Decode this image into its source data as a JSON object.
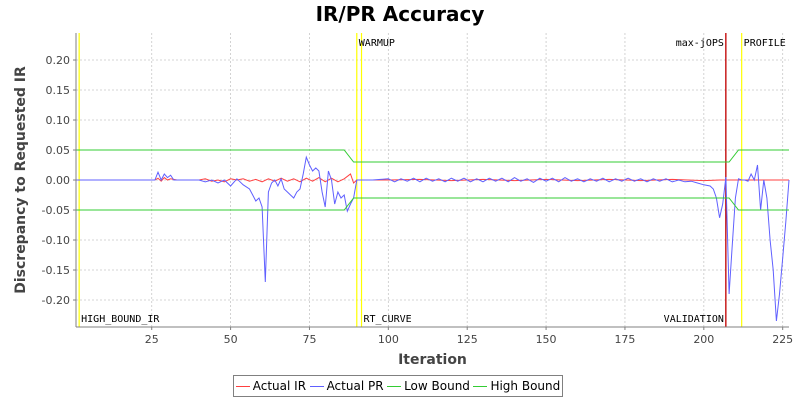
{
  "chart_data": {
    "type": "line",
    "title": "IR/PR Accuracy",
    "xlabel": "Iteration",
    "ylabel": "Discrepancy to Requested IR",
    "xlim": [
      1,
      227
    ],
    "ylim": [
      -0.245,
      0.245
    ],
    "xticks": [
      25,
      50,
      75,
      100,
      125,
      150,
      175,
      200,
      225
    ],
    "yticks": [
      -0.2,
      -0.15,
      -0.1,
      -0.05,
      0.0,
      0.05,
      0.1,
      0.15,
      0.2
    ],
    "ytick_labels": [
      "-0.20",
      "-0.15",
      "-0.10",
      "-0.05",
      "0.00",
      "0.05",
      "0.10",
      "0.15",
      "0.20"
    ],
    "grid": true,
    "legend_position": "bottom",
    "markers": [
      {
        "x": 2,
        "label": "HIGH_BOUND_IR",
        "color": "#ffff00",
        "label_pos": "bottom"
      },
      {
        "x": 90,
        "label": "WARMUP",
        "color": "#ffff00",
        "label_pos": "top"
      },
      {
        "x": 91.5,
        "label": "RT_CURVE",
        "color": "#ffff00",
        "label_pos": "bottom"
      },
      {
        "x": 207,
        "label": "max-jOPS",
        "color": "#c00000",
        "label_pos": "top",
        "label_side": "left"
      },
      {
        "x": 207,
        "label": "VALIDATION",
        "color": "#c00000",
        "label_pos": "bottom",
        "label_side": "left"
      },
      {
        "x": 212,
        "label": "PROFILE",
        "color": "#ffff00",
        "label_pos": "top"
      }
    ],
    "series": [
      {
        "name": "Actual IR",
        "color": "#ff4040",
        "points": [
          [
            1,
            0
          ],
          [
            26,
            0
          ],
          [
            27,
            0.003
          ],
          [
            28,
            -0.002
          ],
          [
            29,
            0.004
          ],
          [
            30,
            0
          ],
          [
            31,
            0.002
          ],
          [
            33,
            0
          ],
          [
            40,
            0
          ],
          [
            42,
            0.002
          ],
          [
            44,
            -0.002
          ],
          [
            46,
            0
          ],
          [
            48,
            -0.003
          ],
          [
            50,
            0.002
          ],
          [
            52,
            0
          ],
          [
            54,
            0.002
          ],
          [
            56,
            -0.002
          ],
          [
            58,
            0.001
          ],
          [
            60,
            -0.003
          ],
          [
            62,
            0.002
          ],
          [
            64,
            -0.002
          ],
          [
            66,
            0.003
          ],
          [
            68,
            -0.002
          ],
          [
            70,
            0.002
          ],
          [
            72,
            -0.003
          ],
          [
            74,
            0.003
          ],
          [
            76,
            -0.002
          ],
          [
            78,
            0.004
          ],
          [
            80,
            -0.003
          ],
          [
            82,
            0.003
          ],
          [
            84,
            -0.003
          ],
          [
            86,
            0.002
          ],
          [
            88,
            0.01
          ],
          [
            89,
            -0.005
          ],
          [
            90,
            0
          ],
          [
            100,
            0
          ],
          [
            110,
            0.001
          ],
          [
            120,
            -0.001
          ],
          [
            130,
            0.001
          ],
          [
            140,
            -0.001
          ],
          [
            150,
            0.001
          ],
          [
            160,
            -0.001
          ],
          [
            170,
            0.001
          ],
          [
            180,
            -0.001
          ],
          [
            190,
            0.001
          ],
          [
            200,
            -0.001
          ],
          [
            205,
            0
          ],
          [
            210,
            0
          ],
          [
            227,
            0
          ]
        ]
      },
      {
        "name": "Actual PR",
        "color": "#6060ff",
        "points": [
          [
            1,
            0
          ],
          [
            26,
            0
          ],
          [
            27,
            0.013
          ],
          [
            28,
            0
          ],
          [
            29,
            0.01
          ],
          [
            30,
            0.004
          ],
          [
            31,
            0.008
          ],
          [
            32,
            0
          ],
          [
            40,
            0
          ],
          [
            42,
            -0.003
          ],
          [
            44,
            0
          ],
          [
            46,
            -0.005
          ],
          [
            48,
            0
          ],
          [
            50,
            -0.01
          ],
          [
            52,
            0.002
          ],
          [
            54,
            -0.008
          ],
          [
            56,
            -0.015
          ],
          [
            57,
            -0.025
          ],
          [
            58,
            -0.035
          ],
          [
            59,
            -0.03
          ],
          [
            60,
            -0.045
          ],
          [
            61,
            -0.17
          ],
          [
            62,
            -0.02
          ],
          [
            63,
            -0.005
          ],
          [
            64,
            0
          ],
          [
            65,
            -0.01
          ],
          [
            66,
            0.002
          ],
          [
            67,
            -0.015
          ],
          [
            68,
            -0.02
          ],
          [
            69,
            -0.025
          ],
          [
            70,
            -0.03
          ],
          [
            71,
            -0.02
          ],
          [
            72,
            -0.015
          ],
          [
            73,
            0.01
          ],
          [
            74,
            0.038
          ],
          [
            75,
            0.025
          ],
          [
            76,
            0.015
          ],
          [
            77,
            0.02
          ],
          [
            78,
            0.015
          ],
          [
            79,
            -0.02
          ],
          [
            80,
            -0.045
          ],
          [
            81,
            0.015
          ],
          [
            82,
            0
          ],
          [
            83,
            -0.04
          ],
          [
            84,
            -0.02
          ],
          [
            85,
            -0.03
          ],
          [
            86,
            -0.025
          ],
          [
            87,
            -0.052
          ],
          [
            88,
            -0.04
          ],
          [
            89,
            -0.03
          ],
          [
            90,
            0
          ],
          [
            95,
            0
          ],
          [
            100,
            0.002
          ],
          [
            102,
            -0.003
          ],
          [
            104,
            0.002
          ],
          [
            106,
            -0.002
          ],
          [
            108,
            0.003
          ],
          [
            110,
            -0.003
          ],
          [
            112,
            0.003
          ],
          [
            114,
            -0.002
          ],
          [
            116,
            0.002
          ],
          [
            118,
            -0.003
          ],
          [
            120,
            0.003
          ],
          [
            122,
            -0.002
          ],
          [
            124,
            0.003
          ],
          [
            126,
            -0.003
          ],
          [
            128,
            0.002
          ],
          [
            130,
            -0.003
          ],
          [
            132,
            0.003
          ],
          [
            134,
            -0.002
          ],
          [
            136,
            0.003
          ],
          [
            138,
            -0.003
          ],
          [
            140,
            0.004
          ],
          [
            142,
            -0.002
          ],
          [
            144,
            0.002
          ],
          [
            146,
            -0.004
          ],
          [
            148,
            0.003
          ],
          [
            150,
            -0.002
          ],
          [
            152,
            0.003
          ],
          [
            154,
            -0.003
          ],
          [
            156,
            0.004
          ],
          [
            158,
            -0.002
          ],
          [
            160,
            0.002
          ],
          [
            162,
            -0.003
          ],
          [
            164,
            0.002
          ],
          [
            166,
            -0.002
          ],
          [
            168,
            0.003
          ],
          [
            170,
            -0.003
          ],
          [
            172,
            0.002
          ],
          [
            174,
            -0.002
          ],
          [
            176,
            0.003
          ],
          [
            178,
            -0.002
          ],
          [
            180,
            0.002
          ],
          [
            182,
            -0.003
          ],
          [
            184,
            0.002
          ],
          [
            186,
            -0.002
          ],
          [
            188,
            0.002
          ],
          [
            190,
            -0.003
          ],
          [
            192,
            0
          ],
          [
            194,
            -0.003
          ],
          [
            196,
            -0.002
          ],
          [
            198,
            -0.005
          ],
          [
            200,
            -0.008
          ],
          [
            202,
            -0.01
          ],
          [
            203,
            -0.015
          ],
          [
            204,
            -0.03
          ],
          [
            205,
            -0.063
          ],
          [
            206,
            -0.04
          ],
          [
            207,
            0.005
          ],
          [
            208,
            -0.19
          ],
          [
            209,
            -0.11
          ],
          [
            210,
            -0.03
          ],
          [
            211,
            0.002
          ],
          [
            212,
            0
          ],
          [
            213,
            0
          ],
          [
            214,
            -0.002
          ],
          [
            215,
            0.01
          ],
          [
            216,
            0
          ],
          [
            217,
            0.025
          ],
          [
            218,
            -0.05
          ],
          [
            219,
            0
          ],
          [
            220,
            -0.03
          ],
          [
            221,
            -0.1
          ],
          [
            222,
            -0.15
          ],
          [
            223,
            -0.235
          ],
          [
            224,
            -0.19
          ],
          [
            225,
            -0.13
          ],
          [
            226,
            -0.07
          ],
          [
            227,
            0
          ]
        ]
      },
      {
        "name": "Low Bound",
        "color": "#33cc33",
        "points": [
          [
            1,
            -0.05
          ],
          [
            86,
            -0.05
          ],
          [
            89,
            -0.03
          ],
          [
            208,
            -0.03
          ],
          [
            211,
            -0.05
          ],
          [
            227,
            -0.05
          ]
        ]
      },
      {
        "name": "High Bound",
        "color": "#33cc33",
        "points": [
          [
            1,
            0.05
          ],
          [
            86,
            0.05
          ],
          [
            89,
            0.03
          ],
          [
            208,
            0.03
          ],
          [
            211,
            0.05
          ],
          [
            227,
            0.05
          ]
        ]
      }
    ]
  }
}
